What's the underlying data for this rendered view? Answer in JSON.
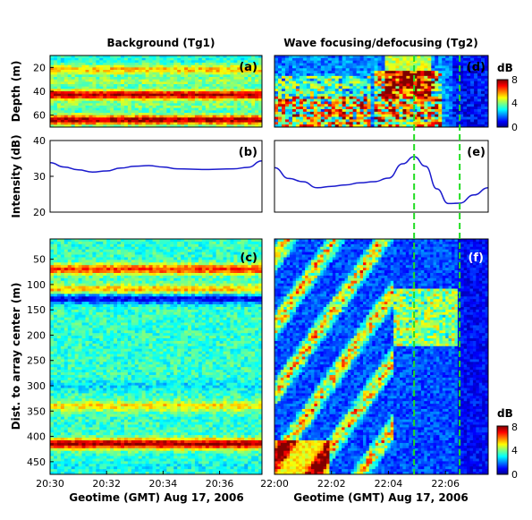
{
  "chart_data": [
    {
      "id": "a",
      "type": "heatmap",
      "panel_label": "(a)",
      "title": "Background (Tg1)",
      "ylabel": "Depth (m)",
      "ylim": [
        10,
        70
      ],
      "yticks": [
        "20",
        "40",
        "60"
      ],
      "ytick_values": [
        20,
        40,
        60
      ],
      "xlim": [
        0,
        7.5
      ],
      "colorbar": false,
      "bands": [
        {
          "y": 22,
          "value": 5.5
        },
        {
          "y": 32,
          "value": 4.2
        },
        {
          "y": 43,
          "value": 7.6
        },
        {
          "y": 52,
          "value": 4.0
        },
        {
          "y": 64,
          "value": 7.8
        }
      ]
    },
    {
      "id": "d",
      "type": "heatmap",
      "panel_label": "(d)",
      "title": "Wave focusing/defocusing (Tg2)",
      "ylim": [
        10,
        70
      ],
      "xlim": [
        0,
        7.5
      ],
      "colorbar": true,
      "colorbar_unit": "dB",
      "colorbar_ticks": [
        "8",
        "4",
        "0"
      ],
      "colorbar_range": [
        0,
        8
      ]
    },
    {
      "id": "b",
      "type": "line",
      "panel_label": "(b)",
      "ylabel": "Intensity (dB)",
      "ylim": [
        20,
        40
      ],
      "yticks": [
        "40",
        "30",
        "20"
      ],
      "ytick_values": [
        40,
        30,
        20
      ],
      "xlim": [
        0,
        7.5
      ],
      "color": "#1a1acd",
      "x": [
        0,
        0.5,
        1,
        1.5,
        2,
        2.5,
        3,
        3.5,
        4,
        4.5,
        5,
        5.5,
        6,
        6.5,
        7,
        7.5
      ],
      "y": [
        33.8,
        32.6,
        31.8,
        31.2,
        31.5,
        32.3,
        32.8,
        33.0,
        32.6,
        32.1,
        32.0,
        31.9,
        32.0,
        32.1,
        32.5,
        34.3
      ]
    },
    {
      "id": "e",
      "type": "line",
      "panel_label": "(e)",
      "ylim": [
        20,
        40
      ],
      "xlim": [
        0,
        7.5
      ],
      "color": "#1a1acd",
      "x": [
        0,
        0.5,
        1,
        1.5,
        2,
        2.5,
        3,
        3.5,
        4,
        4.5,
        4.9,
        5.3,
        5.7,
        6.1,
        6.5,
        7.0,
        7.5
      ],
      "y": [
        32.4,
        29.4,
        28.5,
        26.8,
        27.2,
        27.6,
        28.2,
        28.5,
        29.5,
        33.5,
        35.5,
        32.8,
        26.5,
        22.4,
        22.5,
        24.8,
        26.8
      ]
    },
    {
      "id": "c",
      "type": "heatmap",
      "panel_label": "(c)",
      "ylabel": "Dist. to array center (m)",
      "ylim": [
        10,
        475
      ],
      "yticks": [
        "50",
        "100",
        "150",
        "200",
        "250",
        "300",
        "350",
        "400",
        "450"
      ],
      "ytick_values": [
        50,
        100,
        150,
        200,
        250,
        300,
        350,
        400,
        450
      ],
      "xlim": [
        0,
        7.5
      ],
      "xticks": [
        "20:30",
        "20:32",
        "20:34",
        "20:36"
      ],
      "xtick_values": [
        0,
        2,
        4,
        6
      ],
      "xlabel": "Geotime (GMT) Aug 17, 2006",
      "bands": [
        {
          "y": 70,
          "value": 6.6
        },
        {
          "y": 128,
          "value": 0.8
        },
        {
          "y": 110,
          "value": 5.6
        },
        {
          "y": 255,
          "value": 3.4
        },
        {
          "y": 300,
          "value": 2.8
        },
        {
          "y": 340,
          "value": 5.2
        },
        {
          "y": 415,
          "value": 7.9
        },
        {
          "y": 460,
          "value": 3.0
        }
      ]
    },
    {
      "id": "f",
      "type": "heatmap",
      "panel_label": "(f)",
      "ylim": [
        10,
        475
      ],
      "xlim": [
        0,
        7.5
      ],
      "xticks": [
        "22:00",
        "22:02",
        "22:04",
        "22:06"
      ],
      "xtick_values": [
        0,
        2,
        4,
        6
      ],
      "xlabel": "Geotime (GMT) Aug 17, 2006",
      "colorbar": true,
      "colorbar_unit": "dB",
      "colorbar_ticks": [
        "8",
        "4",
        "0"
      ],
      "colorbar_range": [
        0,
        8
      ]
    }
  ],
  "markers": {
    "color": "#22dd22",
    "x_values": [
      4.9,
      6.5
    ],
    "style": "dashed vertical lines across panels d, e, f"
  },
  "colormap": [
    "#00008f",
    "#0000ff",
    "#0080ff",
    "#00ffff",
    "#80ff80",
    "#ffff00",
    "#ff8000",
    "#ff0000",
    "#800000"
  ]
}
